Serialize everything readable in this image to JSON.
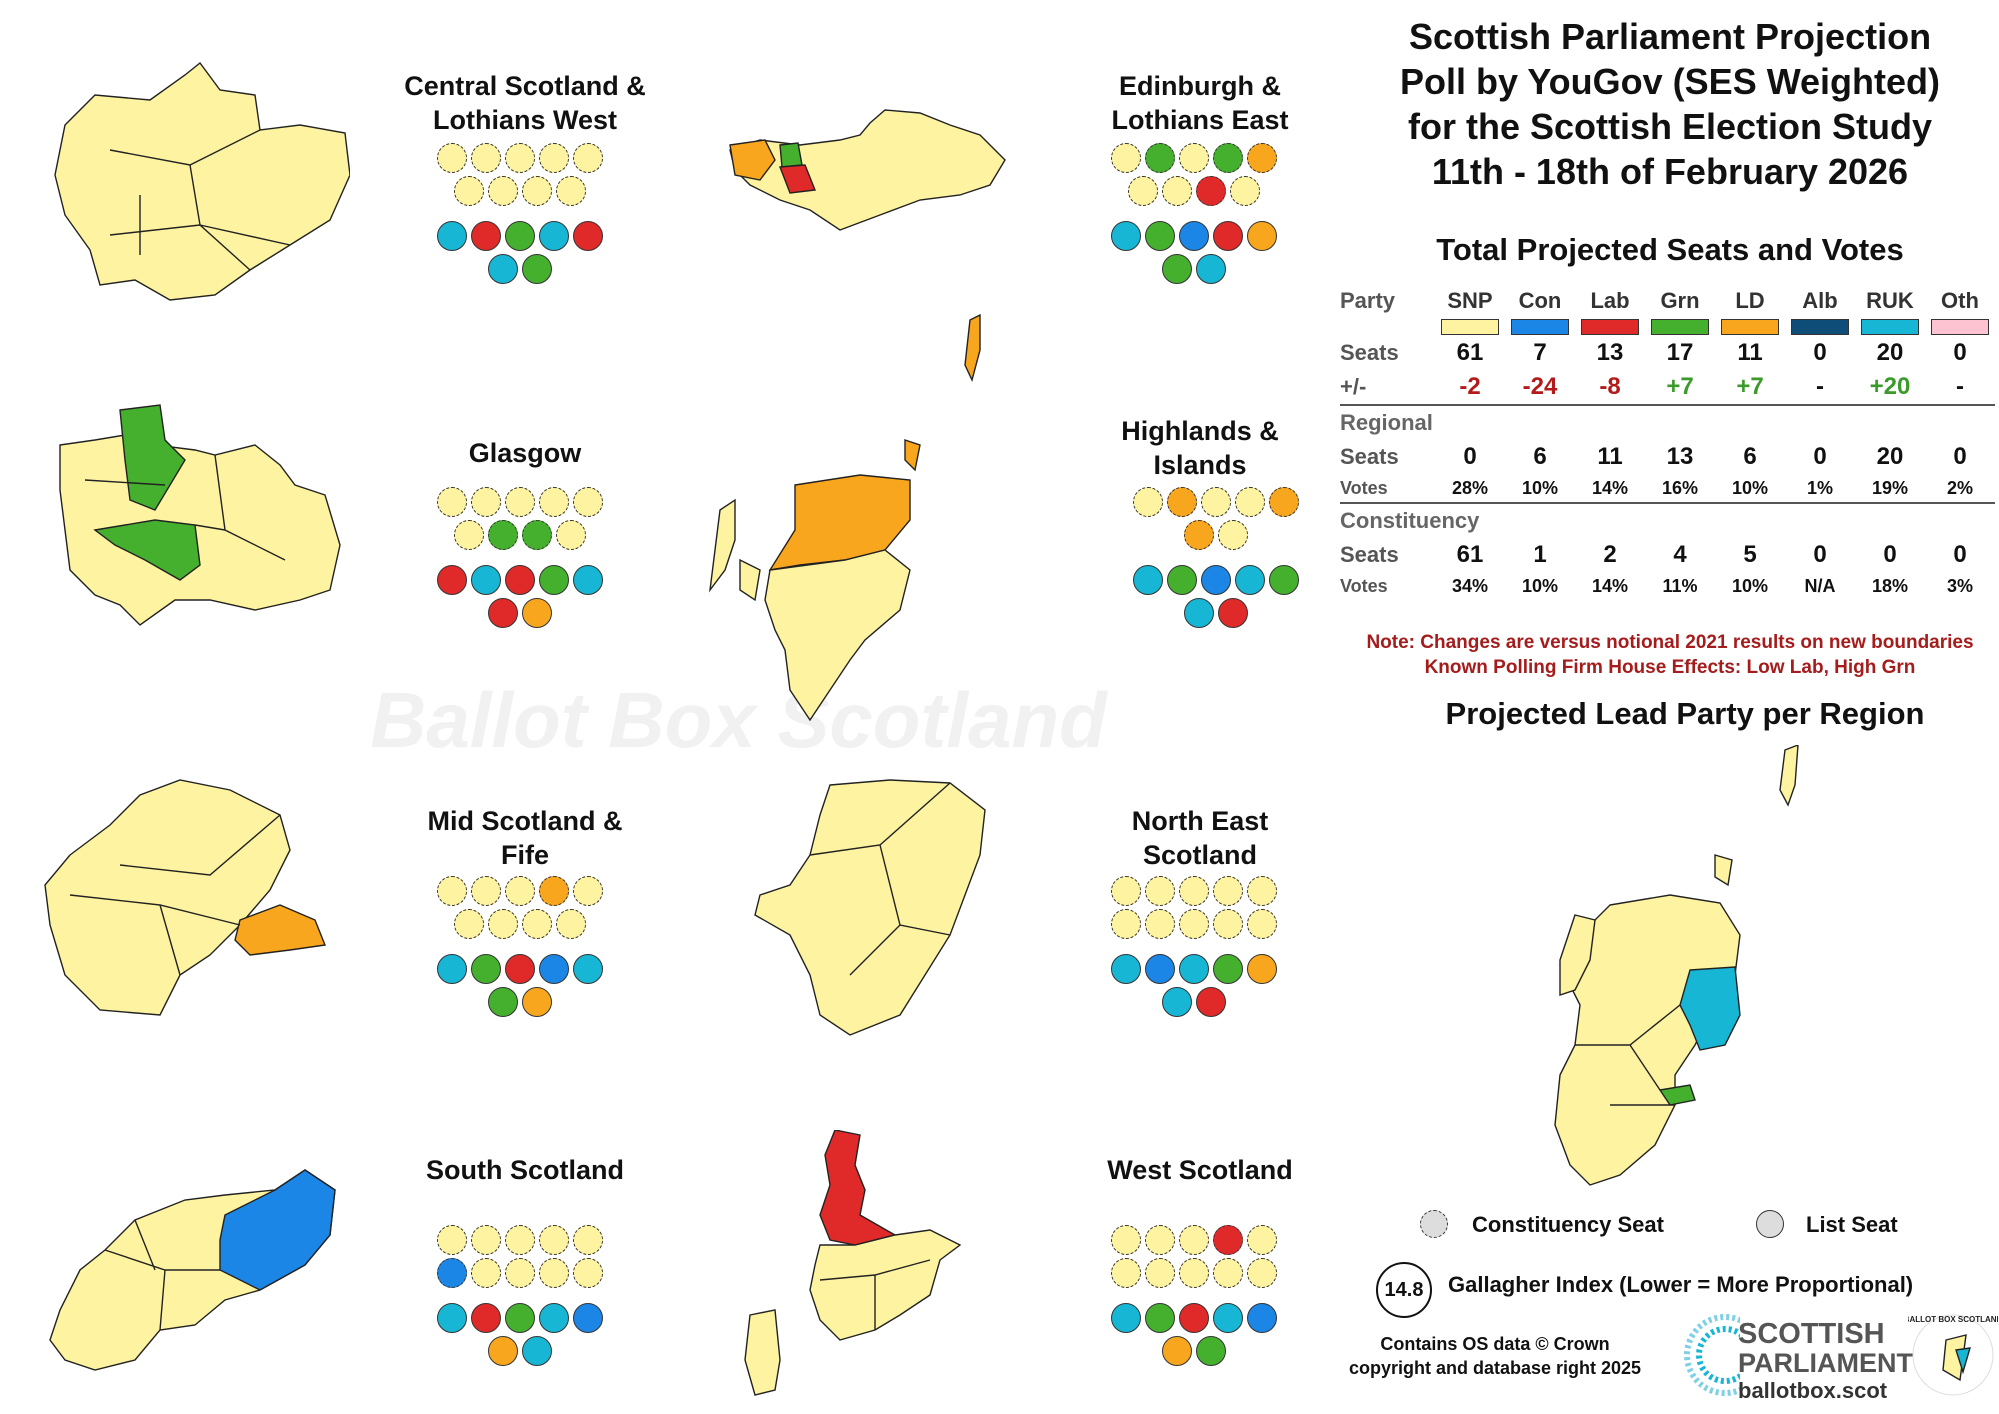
{
  "colors": {
    "snp": "#fdf3a0",
    "con": "#1b86e6",
    "lab": "#e02a2a",
    "grn": "#44b02d",
    "ld": "#f9a61f",
    "alb": "#0f4d79",
    "ruk": "#17b6d4",
    "oth": "#fdc3d0"
  },
  "header": {
    "title_line1": "Scottish Parliament Projection",
    "title_line2": "Poll by YouGov (SES Weighted)",
    "title_line3": "for the Scottish Election Study",
    "title_line4": "11th - 18th of February 2026"
  },
  "totals_title": "Total Projected Seats and Votes",
  "lead_title": "Projected Lead Party per Region",
  "watermark": "Ballot Box Scotland",
  "chart_data": {
    "type": "table",
    "parties": [
      "SNP",
      "Con",
      "Lab",
      "Grn",
      "LD",
      "Alb",
      "RUK",
      "Oth"
    ],
    "party_label": "Party",
    "total_seats": {
      "label": "Seats",
      "values": [
        "61",
        "7",
        "13",
        "17",
        "11",
        "0",
        "20",
        "0"
      ]
    },
    "change": {
      "label": "+/-",
      "values": [
        "-2",
        "-24",
        "-8",
        "+7",
        "+7",
        "-",
        "+20",
        "-"
      ]
    },
    "regional": {
      "label": "Regional",
      "seats": {
        "label": "Seats",
        "values": [
          "0",
          "6",
          "11",
          "13",
          "6",
          "0",
          "20",
          "0"
        ]
      },
      "votes": {
        "label": "Votes",
        "values": [
          "28%",
          "10%",
          "14%",
          "16%",
          "10%",
          "1%",
          "19%",
          "2%"
        ]
      }
    },
    "constituency": {
      "label": "Constituency",
      "seats": {
        "label": "Seats",
        "values": [
          "61",
          "1",
          "2",
          "4",
          "5",
          "0",
          "0",
          "0"
        ]
      },
      "votes": {
        "label": "Votes",
        "values": [
          "34%",
          "10%",
          "14%",
          "11%",
          "10%",
          "N/A",
          "18%",
          "3%"
        ]
      }
    },
    "regions": [
      {
        "name": "Central Scotland & Lothians West",
        "constituency": [
          "snp",
          "snp",
          "snp",
          "snp",
          "snp",
          "snp",
          "snp",
          "snp",
          "snp"
        ],
        "list": [
          "ruk",
          "lab",
          "grn",
          "ruk",
          "lab",
          "ruk",
          "grn"
        ]
      },
      {
        "name": "Edinburgh & Lothians East",
        "constituency": [
          "snp",
          "grn",
          "snp",
          "grn",
          "ld",
          "snp",
          "snp",
          "lab",
          "snp"
        ],
        "list": [
          "ruk",
          "grn",
          "con",
          "lab",
          "ld",
          "grn",
          "ruk"
        ]
      },
      {
        "name": "Glasgow",
        "constituency": [
          "snp",
          "snp",
          "snp",
          "snp",
          "snp",
          "snp",
          "grn",
          "grn",
          "snp"
        ],
        "list": [
          "lab",
          "ruk",
          "lab",
          "grn",
          "ruk",
          "lab",
          "ld"
        ]
      },
      {
        "name": "Highlands & Islands",
        "constituency": [
          "snp",
          "ld",
          "snp",
          "snp",
          "ld",
          "ld",
          "snp"
        ],
        "list": [
          "ruk",
          "grn",
          "con",
          "ruk",
          "grn",
          "ruk",
          "lab"
        ]
      },
      {
        "name": "Mid Scotland & Fife",
        "constituency": [
          "snp",
          "snp",
          "snp",
          "ld",
          "snp",
          "snp",
          "snp",
          "snp",
          "snp"
        ],
        "list": [
          "ruk",
          "grn",
          "lab",
          "con",
          "ruk",
          "grn",
          "ld"
        ]
      },
      {
        "name": "North East Scotland",
        "constituency": [
          "snp",
          "snp",
          "snp",
          "snp",
          "snp",
          "snp",
          "snp",
          "snp",
          "snp",
          "snp"
        ],
        "list": [
          "ruk",
          "con",
          "ruk",
          "grn",
          "ld",
          "ruk",
          "lab"
        ]
      },
      {
        "name": "South Scotland",
        "constituency": [
          "snp",
          "snp",
          "snp",
          "snp",
          "snp",
          "con",
          "snp",
          "snp",
          "snp",
          "snp"
        ],
        "list": [
          "ruk",
          "lab",
          "grn",
          "ruk",
          "con",
          "ld",
          "ruk"
        ]
      },
      {
        "name": "West Scotland",
        "constituency": [
          "snp",
          "snp",
          "snp",
          "lab",
          "snp",
          "snp",
          "snp",
          "snp",
          "snp",
          "snp"
        ],
        "list": [
          "ruk",
          "grn",
          "lab",
          "ruk",
          "con",
          "ld",
          "grn"
        ]
      }
    ]
  },
  "notes": {
    "line1": "Note: Changes are versus notional 2021 results on new boundaries",
    "line2": "Known Polling Firm House Effects:  Low Lab, High Grn"
  },
  "legend": {
    "constituency_seat": "Constituency Seat",
    "list_seat": "List Seat",
    "gallagher_value": "14.8",
    "gallagher_label": "Gallagher Index (Lower = More Proportional)"
  },
  "footer": {
    "os_line1": "Contains OS data © Crown",
    "os_line2": "copyright and database right 2025",
    "logo_line1": "SCOTTISH",
    "logo_line2": "PARLIAMENT",
    "logo_url": "ballotbox.scot",
    "logo_ring": "BALLOT BOX SCOTLAND"
  }
}
